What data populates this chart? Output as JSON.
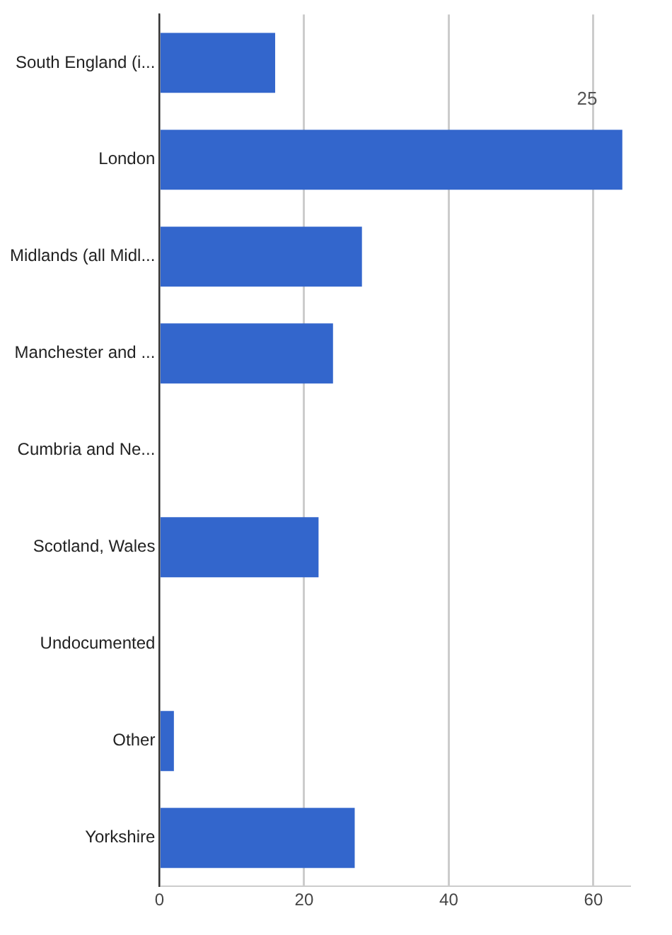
{
  "chart_data": {
    "type": "bar",
    "orientation": "horizontal",
    "categories": [
      "South England (i...",
      "London",
      "Midlands (all Midl...",
      "Manchester and ...",
      "Cumbria and Ne...",
      "Scotland, Wales",
      "Undocumented",
      "Other",
      "Yorkshire"
    ],
    "values": [
      16,
      64,
      28,
      24,
      0,
      22,
      0,
      2,
      27
    ],
    "color": "#3366cc",
    "xlim": [
      0,
      65
    ],
    "xticks": [
      0,
      20,
      40,
      60
    ],
    "grid": "x",
    "legend": false,
    "annotations": [
      "25"
    ]
  }
}
